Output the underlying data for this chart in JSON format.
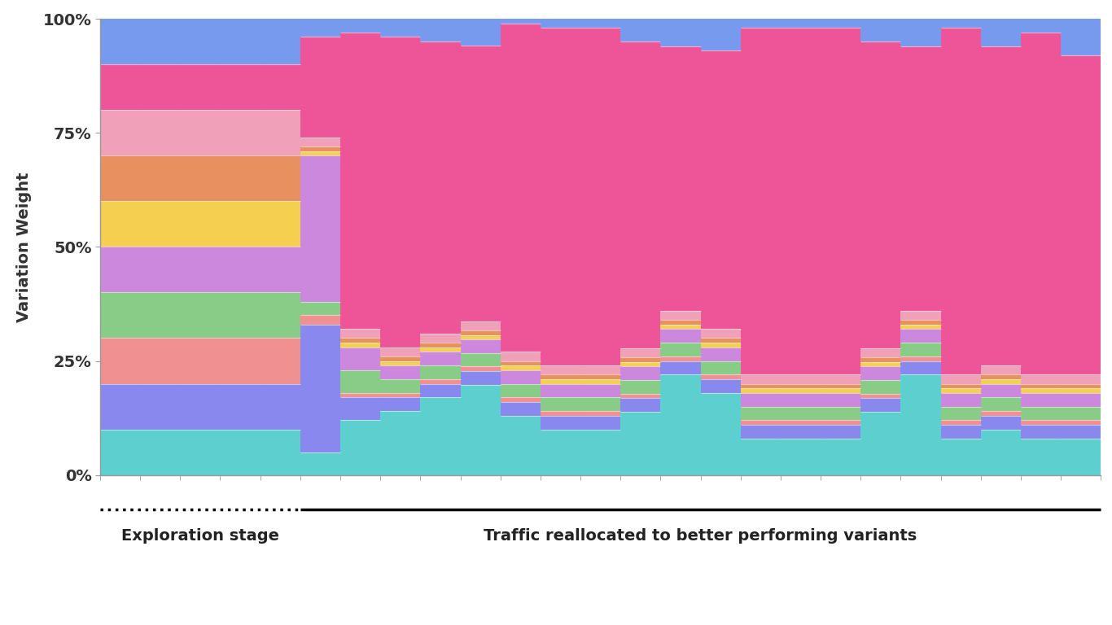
{
  "colors": [
    "#5ECFCF",
    "#8888EE",
    "#F09090",
    "#88CC88",
    "#CC88DD",
    "#F5D050",
    "#E89060",
    "#F0A0B8",
    "#EE5599",
    "#7799EE"
  ],
  "background_color": "#FFFFFF",
  "ylabel": "Variation Weight",
  "yticks": [
    0,
    25,
    50,
    75,
    100
  ],
  "ytick_labels": [
    "0%",
    "25%",
    "50%",
    "75%",
    "100%"
  ],
  "exploration_label": "Exploration stage",
  "exploitation_label": "Traffic reallocated to better performing variants",
  "n_exploration": 5,
  "n_total": 25,
  "weights": [
    [
      10,
      10,
      10,
      10,
      10,
      5,
      12,
      14,
      17,
      20,
      13,
      10,
      10,
      14,
      22,
      18,
      8,
      8,
      8,
      14,
      22,
      8,
      10,
      8,
      8
    ],
    [
      10,
      10,
      10,
      10,
      10,
      28,
      5,
      3,
      3,
      3,
      3,
      3,
      3,
      3,
      3,
      3,
      3,
      3,
      3,
      3,
      3,
      3,
      3,
      3,
      3
    ],
    [
      10,
      10,
      10,
      10,
      10,
      2,
      1,
      1,
      1,
      1,
      1,
      1,
      1,
      1,
      1,
      1,
      1,
      1,
      1,
      1,
      1,
      1,
      1,
      1,
      1
    ],
    [
      10,
      10,
      10,
      10,
      10,
      3,
      5,
      3,
      3,
      3,
      3,
      3,
      3,
      3,
      3,
      3,
      3,
      3,
      3,
      3,
      3,
      3,
      3,
      3,
      3
    ],
    [
      10,
      10,
      10,
      10,
      10,
      32,
      5,
      3,
      3,
      3,
      3,
      3,
      3,
      3,
      3,
      3,
      3,
      3,
      3,
      3,
      3,
      3,
      3,
      3,
      3
    ],
    [
      10,
      10,
      10,
      10,
      10,
      1,
      1,
      1,
      1,
      1,
      1,
      1,
      1,
      1,
      1,
      1,
      1,
      1,
      1,
      1,
      1,
      1,
      1,
      1,
      1
    ],
    [
      10,
      10,
      10,
      10,
      10,
      1,
      1,
      1,
      1,
      1,
      1,
      1,
      1,
      1,
      1,
      1,
      1,
      1,
      1,
      1,
      1,
      1,
      1,
      1,
      1
    ],
    [
      10,
      10,
      10,
      10,
      10,
      2,
      2,
      2,
      2,
      2,
      2,
      2,
      2,
      2,
      2,
      2,
      2,
      2,
      2,
      2,
      2,
      2,
      2,
      2,
      2
    ],
    [
      10,
      10,
      10,
      10,
      10,
      22,
      65,
      68,
      64,
      61,
      72,
      74,
      74,
      68,
      58,
      61,
      76,
      76,
      76,
      68,
      58,
      76,
      70,
      75,
      70
    ],
    [
      10,
      10,
      10,
      10,
      10,
      4,
      3,
      4,
      5,
      6,
      1,
      2,
      2,
      5,
      6,
      7,
      2,
      2,
      2,
      5,
      6,
      2,
      6,
      3,
      8
    ]
  ]
}
